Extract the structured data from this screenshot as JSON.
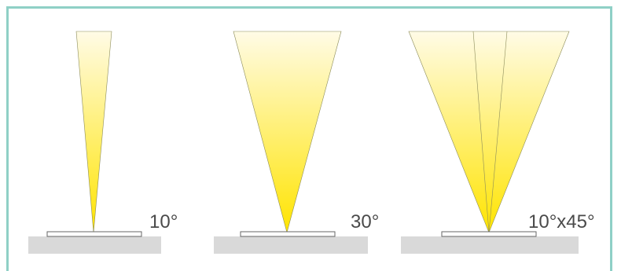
{
  "colors": {
    "frame_border": "#8fd0c6",
    "beam_top": "#fffbe6",
    "beam_bottom": "#ffe400",
    "beam_edge": "#8c8c5a",
    "strip_fill": "#ffffff",
    "strip_stroke": "#666666",
    "ground": "#d9d9d9",
    "label_text": "#4a4a4a"
  },
  "panels": [
    {
      "id": "narrow",
      "angle_label": "10°",
      "beam_angle_deg": 10,
      "split_beams": 1
    },
    {
      "id": "medium",
      "angle_label": "30°",
      "beam_angle_deg": 30,
      "split_beams": 1
    },
    {
      "id": "asymmetric",
      "angle_label": "10°x45°",
      "beam_angle_deg": 45,
      "split_beams": 3
    }
  ]
}
